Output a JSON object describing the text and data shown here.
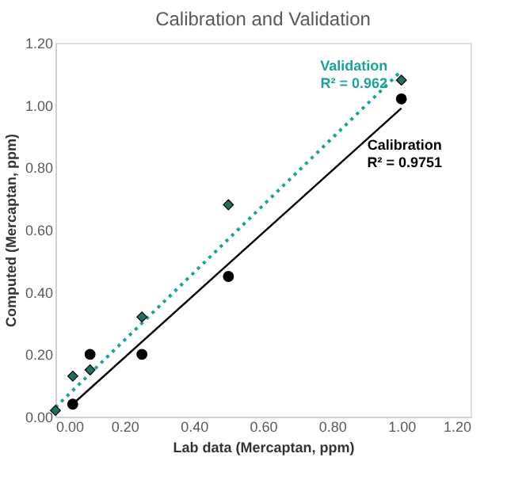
{
  "chart_data": {
    "type": "scatter",
    "title": "Calibration and Validation",
    "xlabel": "Lab data (Mercaptan, ppm)",
    "ylabel": "Computed (Mercaptan, ppm)",
    "xlim": [
      0,
      1.2
    ],
    "ylim": [
      0,
      1.2
    ],
    "xticks": [
      {
        "value": 0,
        "label": "0.00"
      },
      {
        "value": 0.2,
        "label": "0.20"
      },
      {
        "value": 0.4,
        "label": "0.40"
      },
      {
        "value": 0.6,
        "label": "0.60"
      },
      {
        "value": 0.8,
        "label": "0.80"
      },
      {
        "value": 1.0,
        "label": "1.00"
      },
      {
        "value": 1.2,
        "label": "1.20"
      }
    ],
    "yticks": [
      {
        "value": 0,
        "label": "0.00"
      },
      {
        "value": 0.2,
        "label": "0.20"
      },
      {
        "value": 0.4,
        "label": "0.40"
      },
      {
        "value": 0.6,
        "label": "0.60"
      },
      {
        "value": 0.8,
        "label": "0.80"
      },
      {
        "value": 1.0,
        "label": "1.00"
      },
      {
        "value": 1.2,
        "label": "1.20"
      }
    ],
    "series": [
      {
        "name": "Calibration",
        "marker": "circle",
        "color": "#000000",
        "x": [
          0.05,
          0.1,
          0.25,
          0.5,
          1.0
        ],
        "values": [
          0.04,
          0.2,
          0.2,
          0.45,
          1.02
        ]
      },
      {
        "name": "Validation",
        "marker": "diamond",
        "color": "#1f6f62",
        "x": [
          0,
          0.05,
          0.1,
          0.25,
          0.5,
          1.0
        ],
        "values": [
          0.02,
          0.13,
          0.15,
          0.32,
          0.68,
          1.08
        ]
      },
      {
        "type": "line",
        "line_style": "solid",
        "marker": "none",
        "color": "#000000",
        "x": [
          0.05,
          1.0
        ],
        "values": [
          0.04,
          0.99
        ]
      },
      {
        "type": "line",
        "line_style": "dotted",
        "marker": "none",
        "color": "#1aa39a",
        "x": [
          0,
          1.0
        ],
        "values": [
          0.03,
          1.11
        ]
      }
    ],
    "annotations": [
      "R² = 0.9751",
      "R² = 0.962"
    ]
  }
}
